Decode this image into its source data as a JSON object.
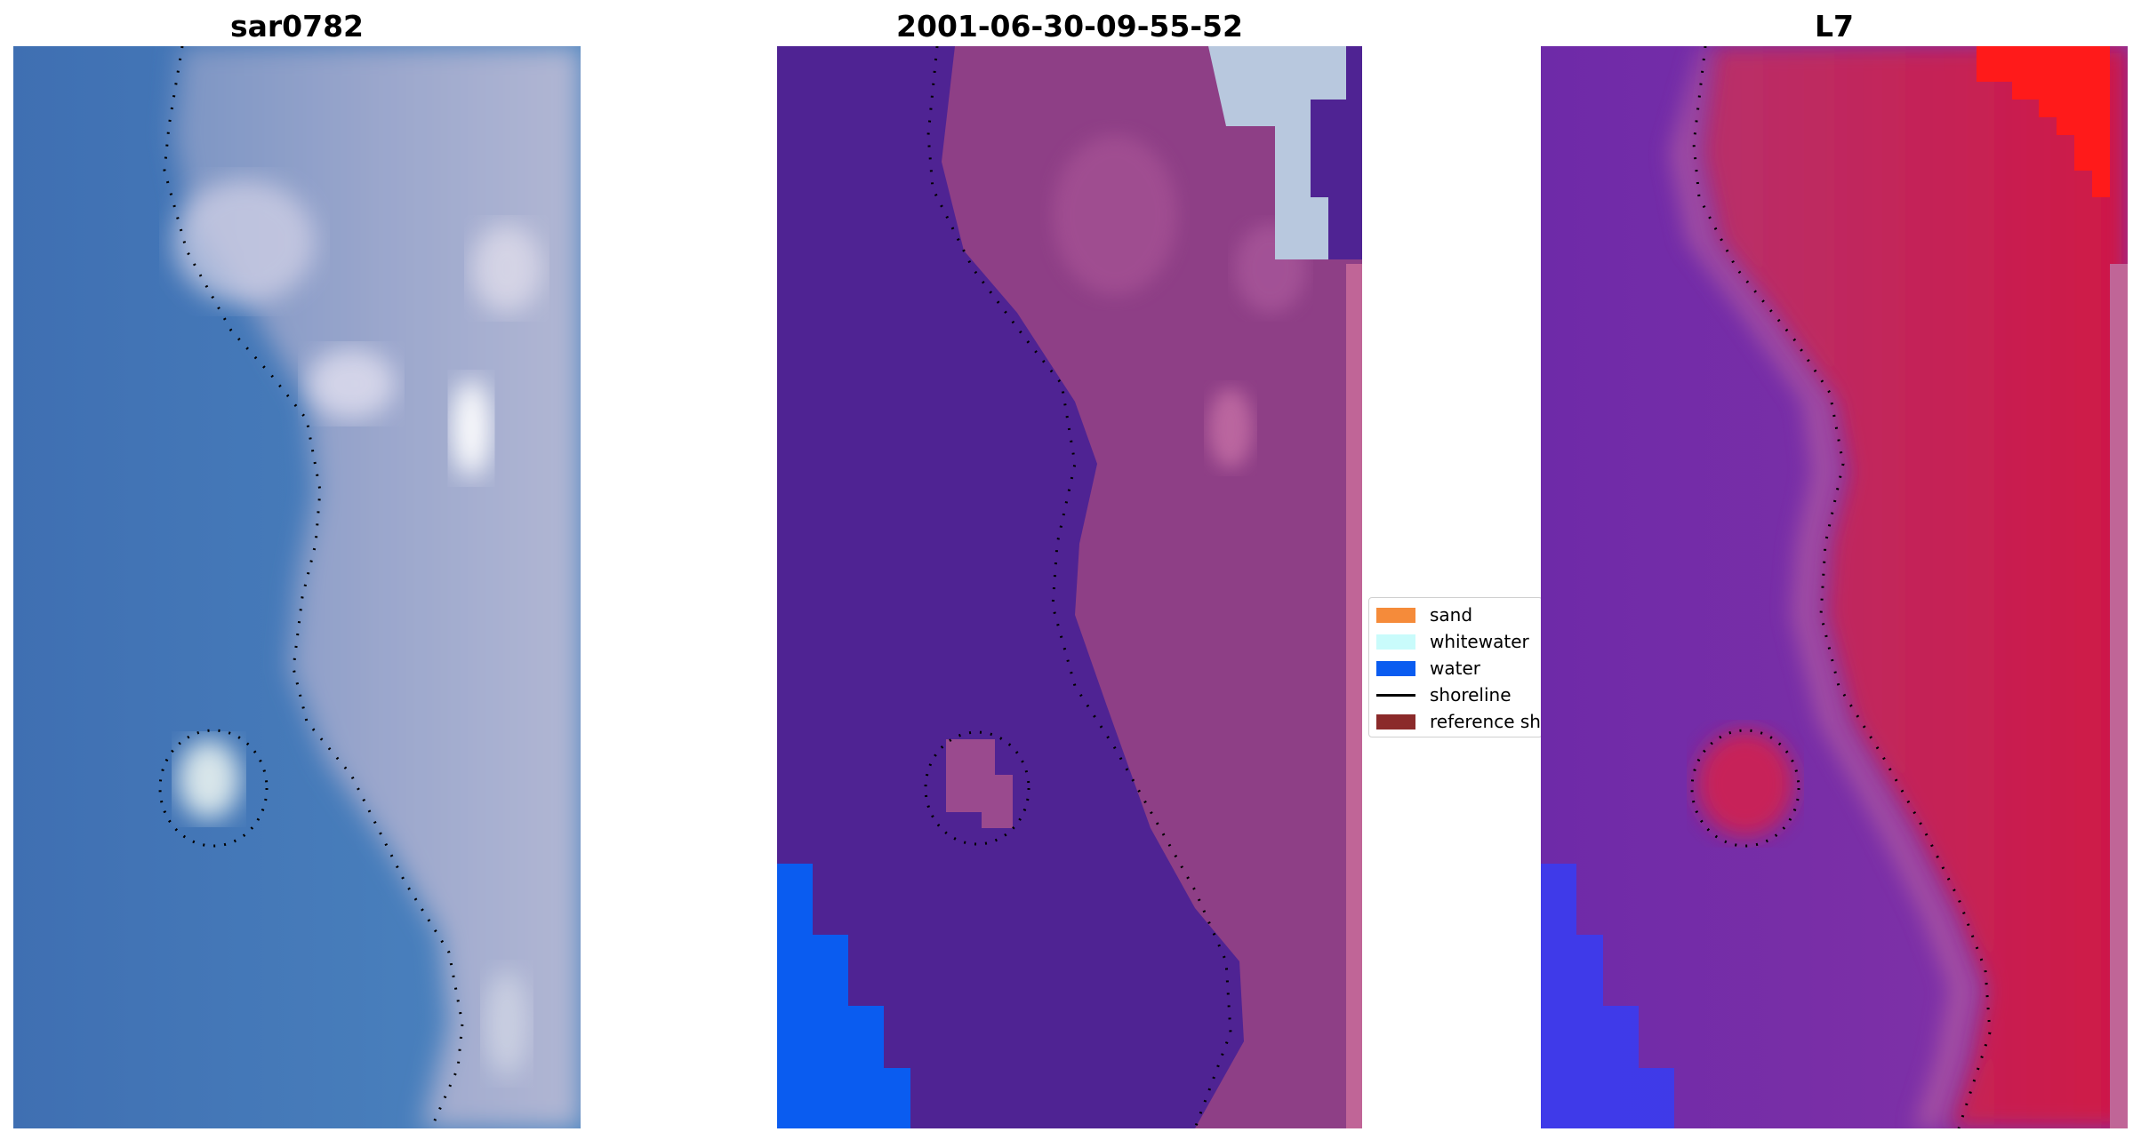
{
  "titles": {
    "rgb": "sar0782",
    "classified": "2001-06-30-09-55-52",
    "index": "L7"
  },
  "legend": {
    "items": [
      {
        "label": "sand",
        "color": "#f58b3a",
        "kind": "patch"
      },
      {
        "label": "whitewater",
        "color": "#c9fbfb",
        "kind": "patch"
      },
      {
        "label": "water",
        "color": "#0a5cf0",
        "kind": "patch"
      },
      {
        "label": "shoreline",
        "color": "#000000",
        "kind": "line"
      },
      {
        "label": "reference sh",
        "color": "#8b2a2a",
        "kind": "patch"
      }
    ]
  },
  "colors": {
    "ocean": "#3e78bb",
    "land_rgb": "#8b9bc7",
    "class_water": "#4f2393",
    "class_land": "#8e3f86",
    "class_blue": "#0a5cf0",
    "class_edge": "#c06597",
    "index_water": "#7a2aa6",
    "index_land": "#c41a4a",
    "index_red": "#ff1a1a"
  }
}
